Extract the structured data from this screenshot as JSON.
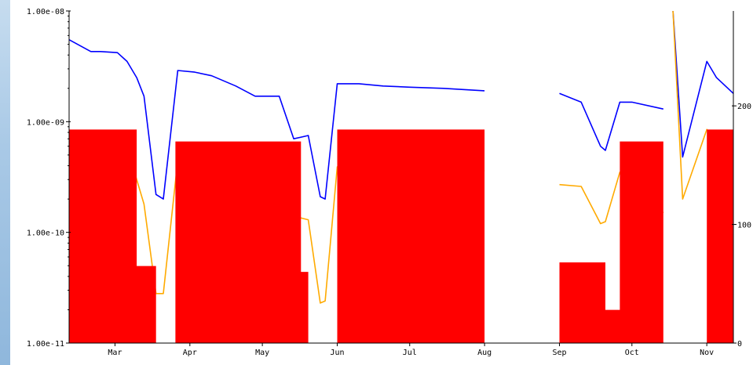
{
  "chart_data": {
    "type": "line",
    "title": "",
    "xlabel": "",
    "ylabel": "",
    "y_scale": "log",
    "ylim": [
      1e-11,
      1e-08
    ],
    "y_ticks": [
      "1.00e-08",
      "1.00e-09",
      "1.00e-10",
      "1.00e-11"
    ],
    "y_tick_values": [
      1e-08,
      1e-09,
      1e-10,
      1e-11
    ],
    "y2_ticks": [
      "200",
      "100",
      "0"
    ],
    "y2_tick_values": [
      200,
      100,
      0
    ],
    "y2lim": [
      0,
      280
    ],
    "x_range": [
      "2024-02-11",
      "2024-11-12"
    ],
    "x_ticks": [
      "Mar",
      "Apr",
      "May",
      "Jun",
      "Jul",
      "Aug",
      "Sep",
      "Oct",
      "Nov"
    ],
    "x_tick_dates": [
      "2024-03-01",
      "2024-04-01",
      "2024-05-01",
      "2024-06-01",
      "2024-07-01",
      "2024-08-01",
      "2024-09-01",
      "2024-10-01",
      "2024-11-01"
    ],
    "grid": false,
    "legend": "none",
    "series": [
      {
        "color": "#0000ff",
        "x": [
          "2024-02-11",
          "2024-02-20",
          "2024-02-24",
          "2024-03-02",
          "2024-03-06",
          "2024-03-10",
          "2024-03-13",
          "2024-03-18",
          "2024-03-21",
          "2024-03-27",
          "2024-04-03",
          "2024-04-10",
          "2024-04-20",
          "2024-04-28",
          "2024-05-08",
          "2024-05-14",
          "2024-05-20",
          "2024-05-25",
          "2024-05-27",
          "2024-06-01",
          "2024-06-10",
          "2024-06-20",
          "2024-07-01",
          "2024-07-15",
          "2024-08-01",
          "2024-08-02",
          "2024-08-25",
          "2024-09-01",
          "2024-09-10",
          "2024-09-18",
          "2024-09-20",
          "2024-09-26",
          "2024-10-01",
          "2024-10-14",
          "2024-10-15",
          "2024-10-18",
          "2024-10-22",
          "2024-11-01",
          "2024-11-05",
          "2024-11-12"
        ],
        "y": [
          5.5e-09,
          4.3e-09,
          4.3e-09,
          4.2e-09,
          3.5e-09,
          2.5e-09,
          1.7e-09,
          2.2e-10,
          2e-10,
          2.9e-09,
          2.8e-09,
          2.6e-09,
          2.1e-09,
          1.7e-09,
          1.7e-09,
          7e-10,
          7.5e-10,
          2.1e-10,
          2e-10,
          2.2e-09,
          2.2e-09,
          2.1e-09,
          2.05e-09,
          2e-09,
          1.9e-09,
          null,
          null,
          1.8e-09,
          1.5e-09,
          6e-10,
          5.5e-10,
          1.5e-09,
          1.5e-09,
          1.3e-09,
          null,
          1e-08,
          4.8e-10,
          3.5e-09,
          2.5e-09,
          1.8e-09
        ]
      },
      {
        "color": "#ffaa00",
        "x": [
          "2024-02-11",
          "2024-02-20",
          "2024-02-24",
          "2024-03-02",
          "2024-03-06",
          "2024-03-10",
          "2024-03-13",
          "2024-03-18",
          "2024-03-21",
          "2024-03-27",
          "2024-04-03",
          "2024-04-10",
          "2024-04-20",
          "2024-04-28",
          "2024-05-08",
          "2024-05-14",
          "2024-05-20",
          "2024-05-25",
          "2024-05-27",
          "2024-06-01",
          "2024-06-10",
          "2024-06-20",
          "2024-07-01",
          "2024-07-15",
          "2024-08-01",
          "2024-08-02",
          "2024-08-25",
          "2024-09-01",
          "2024-09-10",
          "2024-09-18",
          "2024-09-20",
          "2024-09-26",
          "2024-10-01",
          "2024-10-14",
          "2024-10-15",
          "2024-10-18",
          "2024-10-22",
          "2024-11-01",
          "2024-11-05",
          "2024-11-12"
        ],
        "y": [
          5e-10,
          4.6e-10,
          4.6e-10,
          4.2e-10,
          6e-10,
          3e-10,
          1.8e-10,
          2.8e-11,
          2.8e-11,
          4.5e-10,
          4.2e-10,
          4.1e-10,
          3.6e-10,
          2.7e-10,
          2.7e-10,
          1.4e-10,
          1.3e-10,
          2.3e-11,
          2.4e-11,
          3.9e-10,
          3.8e-10,
          3.7e-10,
          3.75e-10,
          3.7e-10,
          3.6e-10,
          null,
          null,
          2.7e-10,
          2.6e-10,
          1.2e-10,
          1.25e-10,
          3.5e-10,
          3.5e-10,
          1.5e-10,
          null,
          1e-08,
          2e-10,
          8.5e-10,
          6e-10,
          4.4e-10
        ]
      },
      {
        "color": "#ff0000",
        "axis": "right",
        "x": [
          "2024-02-11",
          "2024-03-02",
          "2024-03-10",
          "2024-03-18",
          "2024-03-21",
          "2024-03-26",
          "2024-04-10",
          "2024-05-08",
          "2024-05-17",
          "2024-05-20",
          "2024-05-27",
          "2024-06-01",
          "2024-07-01",
          "2024-08-01",
          "2024-08-02",
          "2024-08-25",
          "2024-09-01",
          "2024-09-20",
          "2024-09-26",
          "2024-10-01",
          "2024-10-14",
          "2024-10-15",
          "2024-10-25",
          "2024-11-01",
          "2024-11-12"
        ],
        "y": [
          180,
          180,
          65,
          65,
          null,
          170,
          170,
          170,
          60,
          25,
          null,
          180,
          180,
          170,
          null,
          null,
          68,
          28,
          170,
          170,
          170,
          null,
          null,
          180,
          180
        ]
      }
    ]
  }
}
